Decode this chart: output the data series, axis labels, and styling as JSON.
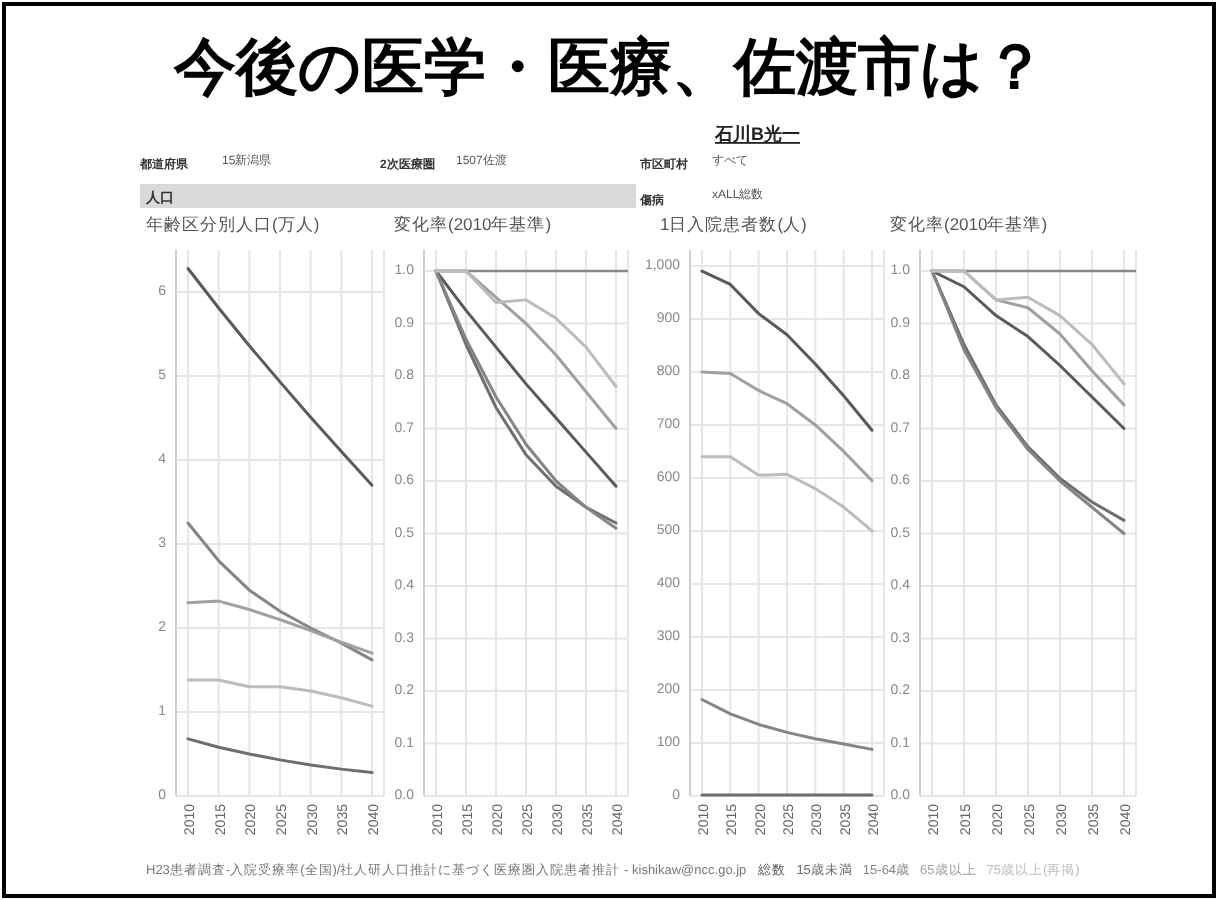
{
  "chart_data": [
    {
      "type": "other",
      "title": "今後の医学・医療、佐渡市は？",
      "annotations": [
        "石川B光一",
        "都道府県",
        "15新潟県",
        "2次医療圏",
        "1507佐渡",
        "市区町村",
        "すべて",
        "人口",
        "傷病",
        "xALL総数",
        "H23患者調査-入院受療率(全国)/社人研人口推計に基づく医療圏入院患者推計 - kishikaw@ncc.go.jp"
      ]
    },
    {
      "type": "line",
      "title": "年齢区分別人口(万人)",
      "categories": [
        "2010",
        "2015",
        "2020",
        "2025",
        "2030",
        "2035",
        "2040"
      ],
      "ylim": [
        0,
        6.5
      ],
      "yticks": [
        0,
        1,
        2,
        3,
        4,
        5,
        6
      ],
      "grid": true,
      "legend": "bottom",
      "series": [
        {
          "name": "総数",
          "color": "#5a5a5a",
          "values": [
            6.28,
            5.81,
            5.36,
            4.93,
            4.51,
            4.1,
            3.7
          ]
        },
        {
          "name": "15歳未満",
          "color": "#6e6e6e",
          "values": [
            0.68,
            0.58,
            0.5,
            0.43,
            0.37,
            0.32,
            0.28
          ]
        },
        {
          "name": "15-64歳",
          "color": "#858585",
          "values": [
            3.25,
            2.8,
            2.45,
            2.2,
            2.0,
            1.82,
            1.62
          ]
        },
        {
          "name": "65歳以上",
          "color": "#a0a0a0",
          "values": [
            2.3,
            2.32,
            2.22,
            2.1,
            1.97,
            1.83,
            1.7
          ]
        },
        {
          "name": "75歳以上(再掲)",
          "color": "#bcbcbc",
          "values": [
            1.38,
            1.38,
            1.3,
            1.3,
            1.25,
            1.17,
            1.07
          ]
        }
      ]
    },
    {
      "type": "line",
      "title": "変化率(2010年基準)",
      "categories": [
        "2010",
        "2015",
        "2020",
        "2025",
        "2030",
        "2035",
        "2040"
      ],
      "ylim": [
        0,
        1.04
      ],
      "yticks": [
        {
          "value": 0,
          "label": "0.0"
        },
        0.1,
        0.2,
        0.3,
        0.4,
        0.5,
        0.6,
        0.7,
        0.8,
        0.9,
        {
          "value": 1,
          "label": "1.0"
        }
      ],
      "grid": true,
      "ref_lines": [
        {
          "axis": "y",
          "value": 1,
          "color": "#888888"
        }
      ],
      "series": [
        {
          "color": "#5a5a5a",
          "values": [
            1,
            0.925,
            0.855,
            0.785,
            0.72,
            0.655,
            0.59
          ]
        },
        {
          "color": "#6e6e6e",
          "values": [
            1,
            0.86,
            0.74,
            0.65,
            0.59,
            0.55,
            0.52
          ]
        },
        {
          "color": "#858585",
          "values": [
            1,
            0.87,
            0.76,
            0.67,
            0.6,
            0.55,
            0.51
          ]
        },
        {
          "color": "#a0a0a0",
          "values": [
            1,
            1,
            0.95,
            0.9,
            0.84,
            0.77,
            0.7
          ]
        },
        {
          "color": "#bcbcbc",
          "values": [
            1,
            1,
            0.94,
            0.945,
            0.91,
            0.855,
            0.78
          ]
        }
      ]
    },
    {
      "type": "line",
      "title": "1日入院患者数(人)",
      "categories": [
        "2010",
        "2015",
        "2020",
        "2025",
        "2030",
        "2035",
        "2040"
      ],
      "ylim": [
        0,
        1030
      ],
      "yticks": [
        0,
        100,
        200,
        300,
        400,
        500,
        600,
        700,
        800,
        900,
        {
          "value": 1000,
          "label": "1,000"
        }
      ],
      "grid": true,
      "series": [
        {
          "color": "#5a5a5a",
          "values": [
            990,
            965,
            910,
            870,
            815,
            755,
            690
          ]
        },
        {
          "color": "#6e6e6e",
          "values": [
            2,
            2,
            2,
            2,
            2,
            2,
            2
          ]
        },
        {
          "color": "#858585",
          "values": [
            182,
            155,
            135,
            120,
            108,
            98,
            88
          ]
        },
        {
          "color": "#a0a0a0",
          "values": [
            800,
            797,
            765,
            740,
            700,
            650,
            595
          ]
        },
        {
          "color": "#bcbcbc",
          "values": [
            640,
            640,
            605,
            607,
            580,
            545,
            500
          ]
        }
      ]
    },
    {
      "type": "line",
      "title": "変化率(2010年基準)",
      "categories": [
        "2010",
        "2015",
        "2020",
        "2025",
        "2030",
        "2035",
        "2040"
      ],
      "ylim": [
        0,
        1.04
      ],
      "yticks": [
        {
          "value": 0,
          "label": "0.0"
        },
        0.1,
        0.2,
        0.3,
        0.4,
        0.5,
        0.6,
        0.7,
        0.8,
        0.9,
        {
          "value": 1,
          "label": "1.0"
        }
      ],
      "grid": true,
      "ref_lines": [
        {
          "axis": "y",
          "value": 1,
          "color": "#888888"
        }
      ],
      "series": [
        {
          "color": "#5a5a5a",
          "values": [
            1,
            0.97,
            0.915,
            0.875,
            0.82,
            0.76,
            0.7
          ]
        },
        {
          "color": "#6e6e6e",
          "values": [
            1,
            0.86,
            0.745,
            0.665,
            0.605,
            0.56,
            0.525
          ]
        },
        {
          "color": "#858585",
          "values": [
            1,
            0.85,
            0.74,
            0.66,
            0.6,
            0.55,
            0.5
          ]
        },
        {
          "color": "#a0a0a0",
          "values": [
            1,
            1,
            0.945,
            0.93,
            0.88,
            0.81,
            0.745
          ]
        },
        {
          "color": "#bcbcbc",
          "values": [
            1,
            1,
            0.945,
            0.95,
            0.915,
            0.86,
            0.785
          ]
        }
      ]
    }
  ]
}
